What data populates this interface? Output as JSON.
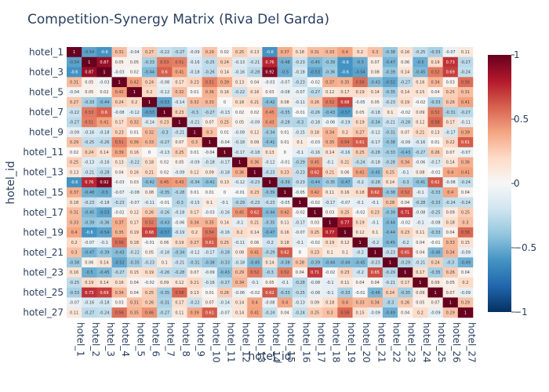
{
  "chart_data": {
    "type": "heatmap",
    "title": "Competition-Synergy Matrix (Riva Del Garda)",
    "xlabel": "hotel_id",
    "ylabel": "hotel_id",
    "labels": [
      "hotel_1",
      "hotel_2",
      "hotel_3",
      "hotel_4",
      "hotel_5",
      "hotel_6",
      "hotel_7",
      "hotel_8",
      "hotel_9",
      "hotel_10",
      "hotel_11",
      "hotel_12",
      "hotel_13",
      "hotel_14",
      "hotel_15",
      "hotel_16",
      "hotel_17",
      "hotel_18",
      "hotel_19",
      "hotel_20",
      "hotel_21",
      "hotel_22",
      "hotel_23",
      "hotel_24",
      "hotel_25",
      "hotel_26",
      "hotel_27"
    ],
    "y_tick_labels": [
      "hotel_1",
      "hotel_3",
      "hotel_5",
      "hotel_7",
      "hotel_9",
      "hotel_11",
      "hotel_13",
      "hotel_15",
      "hotel_17",
      "hotel_19",
      "hotel_21",
      "hotel_23",
      "hotel_25",
      "hotel_27"
    ],
    "zmin": -1,
    "zmax": 1,
    "colorscale": [
      "#053061",
      "#2166ac",
      "#4393c3",
      "#92c5de",
      "#d1e5f0",
      "#f7f7f7",
      "#fddbc7",
      "#f4a582",
      "#d6604d",
      "#b2182b",
      "#67001f"
    ],
    "colorbar_ticks": [
      {
        "value": 1,
        "label": "1"
      },
      {
        "value": 0.5,
        "label": "0.5"
      },
      {
        "value": 0,
        "label": "0"
      },
      {
        "value": -0.5,
        "label": "−0.5"
      },
      {
        "value": -1,
        "label": "−1"
      }
    ],
    "values": [
      [
        1,
        -0.54,
        -0.6,
        0.31,
        -0.04,
        0.27,
        -0.22,
        -0.27,
        -0.09,
        0.29,
        0.02,
        0.25,
        0.13,
        -0.6,
        0.37,
        0.18,
        0.31,
        0.33,
        0.4,
        0.2,
        0.3,
        -0.38,
        0.16,
        -0.25,
        -0.33,
        -0.07,
        0.11
      ],
      [
        -0.54,
        1,
        0.87,
        0.05,
        0.05,
        -0.33,
        0.53,
        0.51,
        -0.16,
        -0.25,
        0.24,
        -0.13,
        -0.21,
        0.76,
        -0.48,
        -0.23,
        -0.45,
        -0.39,
        -0.6,
        -0.5,
        0.07,
        -0.47,
        0.06,
        -0.5,
        0.19,
        0.73,
        -0.27
      ],
      [
        -0.6,
        0.87,
        1,
        -0.03,
        0.02,
        -0.44,
        0.6,
        0.41,
        -0.18,
        -0.26,
        0.14,
        -0.16,
        -0.28,
        0.92,
        -0.5,
        -0.18,
        -0.53,
        -0.36,
        -0.6,
        -0.54,
        0.08,
        -0.39,
        0.14,
        -0.45,
        0.52,
        0.69,
        -0.24
      ],
      [
        0.31,
        0.05,
        -0.03,
        1,
        0.42,
        0.24,
        -0.08,
        0.17,
        0.23,
        0.51,
        0.39,
        0.13,
        0.04,
        -0.03,
        -0.07,
        -0.23,
        -0.02,
        0.37,
        0.35,
        0.56,
        -0.43,
        -0.52,
        -0.27,
        0.16,
        0.34,
        0.03,
        0.56
      ],
      [
        -0.04,
        0.05,
        0.02,
        0.42,
        1,
        0.2,
        -0.12,
        0.32,
        0.01,
        0.36,
        0.16,
        -0.22,
        0.16,
        0.03,
        -0.08,
        -0.07,
        -0.27,
        0.12,
        0.17,
        0.19,
        0.14,
        -0.35,
        0.14,
        0.15,
        0.04,
        0.25,
        0.31
      ],
      [
        0.27,
        -0.33,
        -0.44,
        0.24,
        0.2,
        1,
        -0.53,
        -0.14,
        0.32,
        0.33,
        0,
        0.18,
        0.21,
        -0.42,
        0.08,
        -0.11,
        0.26,
        0.52,
        0.68,
        -0.05,
        0.05,
        -0.23,
        0.19,
        -0.02,
        -0.33,
        0.26,
        0.41
      ],
      [
        -0.22,
        0.53,
        0.6,
        -0.08,
        -0.12,
        -0.53,
        1,
        0.23,
        -0.3,
        -0.27,
        -0.13,
        0.02,
        0.02,
        0.45,
        -0.35,
        -0.01,
        -0.26,
        -0.43,
        -0.57,
        0.05,
        -0.18,
        0.1,
        -0.02,
        0.09,
        0.52,
        -0.31,
        -0.27
      ],
      [
        -0.27,
        0.51,
        0.41,
        0.17,
        0.32,
        -0.14,
        0.23,
        1,
        -0.21,
        0.07,
        0.25,
        0.05,
        -0.09,
        0.43,
        -0.28,
        -0.3,
        -0.18,
        -0.06,
        -0.19,
        0.19,
        -0.34,
        -0.21,
        -0.28,
        0.12,
        0.58,
        0.17,
        -0.11
      ],
      [
        -0.09,
        -0.16,
        -0.18,
        0.23,
        0.01,
        0.32,
        -0.3,
        -0.21,
        1,
        0.3,
        0.01,
        -0.09,
        0.12,
        -0.34,
        0.01,
        -0.15,
        0.18,
        0.34,
        0.2,
        0.27,
        -0.12,
        -0.31,
        0.07,
        0.21,
        0.13,
        -0.17,
        0.39
      ],
      [
        0.29,
        -0.25,
        -0.26,
        0.51,
        0.36,
        0.33,
        -0.27,
        0.07,
        0.3,
        1,
        -0.04,
        -0.18,
        0.09,
        -0.41,
        0.01,
        0.1,
        -0.03,
        0.35,
        0.54,
        0.61,
        -0.17,
        -0.38,
        -0.09,
        -0.16,
        0.01,
        0.22,
        0.61
      ],
      [
        0.02,
        0.24,
        0.14,
        0.39,
        0.16,
        0,
        -0.13,
        0.25,
        0.01,
        -0.04,
        1,
        -0.17,
        -0.18,
        0.13,
        0,
        -0.1,
        -0.16,
        0.14,
        -0.16,
        0.25,
        -0.28,
        -0.33,
        -0.43,
        -0.27,
        0.26,
        0.07,
        -0.07
      ],
      [
        0.25,
        -0.13,
        -0.16,
        0.13,
        -0.22,
        0.18,
        0.02,
        0.05,
        -0.09,
        -0.18,
        -0.17,
        1,
        0.36,
        -0.12,
        -0.01,
        -0.29,
        0.45,
        -0.1,
        0.21,
        -0.24,
        -0.18,
        -0.28,
        0.34,
        -0.06,
        -0.17,
        0.14,
        0.36
      ],
      [
        0.13,
        -0.21,
        -0.28,
        0.04,
        0.16,
        0.21,
        0.02,
        -0.09,
        0.12,
        0.09,
        -0.18,
        0.36,
        1,
        -0.23,
        0.23,
        -0.23,
        0.62,
        0.21,
        0.06,
        0.41,
        -0.45,
        0.25,
        -0.1,
        0.08,
        -0.02,
        0.4,
        0.41
      ],
      [
        -0.6,
        0.76,
        0.92,
        -0.03,
        0.03,
        -0.42,
        0.45,
        0.43,
        -0.34,
        -0.41,
        0.13,
        -0.12,
        -0.23,
        1,
        -0.39,
        -0.23,
        -0.44,
        -0.35,
        -0.47,
        -0.2,
        -0.28,
        0.14,
        -0.3,
        -0.41,
        0.62,
        -0.08,
        -0.24
      ],
      [
        0.37,
        -0.48,
        -0.5,
        -0.07,
        -0.08,
        0.08,
        -0.35,
        -0.28,
        0.01,
        0.01,
        0,
        -0.01,
        0.23,
        -0.39,
        1,
        -0.05,
        0.42,
        0.11,
        0.16,
        0.18,
        0.62,
        -0.38,
        0.52,
        -0.1,
        -0.33,
        0.4,
        0.04
      ],
      [
        0.18,
        -0.23,
        -0.18,
        -0.23,
        -0.07,
        -0.11,
        -0.01,
        -0.3,
        -0.15,
        0.1,
        -0.1,
        -0.29,
        -0.23,
        -0.23,
        -0.05,
        1,
        -0.02,
        -0.17,
        -0.07,
        -0.1,
        -0.1,
        0.28,
        0.04,
        -0.28,
        -0.33,
        -0.24,
        -0.24
      ],
      [
        0.31,
        -0.45,
        -0.53,
        -0.02,
        0.12,
        0.26,
        -0.26,
        -0.18,
        0.17,
        -0.03,
        -0.16,
        0.45,
        0.62,
        -0.44,
        0.42,
        -0.02,
        1,
        0.03,
        0.25,
        -0.02,
        0.23,
        -0.39,
        0.71,
        -0.08,
        -0.25,
        0.09,
        0.25
      ],
      [
        0.33,
        -0.39,
        -0.36,
        0.37,
        0.17,
        0.52,
        -0.43,
        -0.06,
        0.34,
        0.35,
        0.14,
        -0.1,
        0.21,
        -0.35,
        0.11,
        -0.17,
        0.03,
        1,
        0.77,
        0.19,
        -0.1,
        -0.44,
        -0.02,
        -0.1,
        -0.08,
        0.18,
        0.3
      ],
      [
        0.4,
        -0.6,
        -0.54,
        0.35,
        0.19,
        0.68,
        -0.57,
        -0.19,
        0.2,
        0.54,
        -0.16,
        0.2,
        0.14,
        -0.47,
        0.16,
        -0.07,
        0.25,
        0.77,
        1,
        0.12,
        0.1,
        -0.44,
        0.23,
        0.11,
        -0.33,
        0.04,
        0.58
      ],
      [
        0.2,
        -0.07,
        -0.1,
        0.56,
        0.18,
        -0.01,
        0.06,
        0.19,
        0.27,
        0.61,
        0.25,
        -0.11,
        0.06,
        -0.2,
        0.18,
        -0.1,
        -0.02,
        0.19,
        0.12,
        1,
        -0.2,
        -0.45,
        -0.2,
        0.04,
        -0.01,
        0.33,
        0.15
      ],
      [
        0.3,
        -0.47,
        -0.39,
        -0.43,
        -0.22,
        0.05,
        -0.18,
        -0.34,
        -0.12,
        -0.17,
        -0.28,
        0.08,
        0.41,
        -0.29,
        0.62,
        0,
        0.23,
        0.1,
        0.1,
        -0.2,
        1,
        -0.23,
        0.65,
        0.04,
        -0.46,
        0.34,
        -0.09
      ],
      [
        -0.38,
        0.06,
        0.14,
        -0.52,
        -0.35,
        -0.23,
        0.1,
        -0.21,
        -0.31,
        -0.38,
        -0.33,
        -0.18,
        -0.45,
        0.14,
        -0.38,
        0.28,
        -0.39,
        -0.44,
        -0.44,
        -0.45,
        -0.23,
        1,
        -0.29,
        -0.21,
        0.24,
        -0.3,
        -0.49
      ],
      [
        0.16,
        -0.5,
        -0.45,
        -0.27,
        0.15,
        0.19,
        -0.26,
        -0.28,
        0.07,
        -0.09,
        -0.43,
        0.29,
        0.52,
        -0.3,
        0.52,
        0.04,
        0.71,
        -0.02,
        0.23,
        -0.2,
        0.65,
        -0.29,
        1,
        0.17,
        -0.35,
        0.26,
        0.04
      ],
      [
        -0.25,
        0.19,
        0.14,
        0.16,
        0.04,
        -0.02,
        0.09,
        0.12,
        0.21,
        -0.16,
        -0.27,
        0.34,
        -0.1,
        0.05,
        -0.1,
        -0.28,
        -0.08,
        -0.1,
        0.11,
        0.04,
        0.04,
        -0.21,
        0.17,
        1,
        0.09,
        0.05,
        0.2
      ],
      [
        -0.33,
        0.73,
        0.69,
        0.34,
        0.04,
        0.25,
        -0.35,
        0.58,
        0.13,
        0.01,
        0.26,
        -0.06,
        -0.02,
        0.62,
        -0.33,
        -0.25,
        -0.08,
        -0.1,
        -0.33,
        -0.01,
        -0.46,
        0.24,
        -0.35,
        0.09,
        1,
        0.07,
        -0.09
      ],
      [
        -0.07,
        -0.16,
        -0.18,
        0.03,
        0.31,
        0.26,
        -0.31,
        0.17,
        -0.22,
        0.07,
        -0.14,
        0.14,
        0.4,
        -0.08,
        0.4,
        -0.13,
        0.09,
        0.18,
        0.4,
        0.33,
        0.34,
        -0.3,
        0.26,
        0.05,
        0.07,
        1,
        0.29
      ],
      [
        0.11,
        -0.27,
        -0.24,
        0.56,
        0.35,
        0.46,
        -0.27,
        0.11,
        0.39,
        0.61,
        -0.07,
        0.14,
        0.41,
        -0.24,
        0.04,
        -0.24,
        0.25,
        0.3,
        0.58,
        0.15,
        -0.09,
        -0.49,
        0.04,
        0.2,
        -0.09,
        0.29,
        1
      ]
    ]
  }
}
